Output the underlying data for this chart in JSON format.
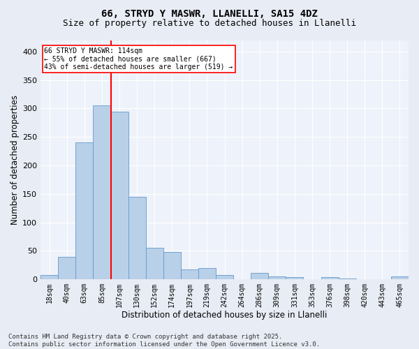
{
  "title_line1": "66, STRYD Y MASWR, LLANELLI, SA15 4DZ",
  "title_line2": "Size of property relative to detached houses in Llanelli",
  "xlabel": "Distribution of detached houses by size in Llanelli",
  "ylabel": "Number of detached properties",
  "bar_labels": [
    "18sqm",
    "40sqm",
    "63sqm",
    "85sqm",
    "107sqm",
    "130sqm",
    "152sqm",
    "174sqm",
    "197sqm",
    "219sqm",
    "242sqm",
    "264sqm",
    "286sqm",
    "309sqm",
    "331sqm",
    "353sqm",
    "376sqm",
    "398sqm",
    "420sqm",
    "443sqm",
    "465sqm"
  ],
  "bar_values": [
    8,
    40,
    240,
    305,
    295,
    145,
    55,
    48,
    17,
    20,
    8,
    0,
    11,
    5,
    4,
    0,
    4,
    1,
    0,
    0,
    5
  ],
  "bar_color": "#b8d0e8",
  "bar_edge_color": "#6699cc",
  "red_line_index": 4,
  "annotation_line1": "66 STRYD Y MASWR: 114sqm",
  "annotation_line2": "← 55% of detached houses are smaller (667)",
  "annotation_line3": "43% of semi-detached houses are larger (519) →",
  "ylim": [
    0,
    420
  ],
  "yticks": [
    0,
    50,
    100,
    150,
    200,
    250,
    300,
    350,
    400
  ],
  "footer_text": "Contains HM Land Registry data © Crown copyright and database right 2025.\nContains public sector information licensed under the Open Government Licence v3.0.",
  "bg_color": "#e8ecf4",
  "plot_bg_color": "#eef2fa",
  "grid_color": "#ffffff",
  "title_fontsize": 10,
  "subtitle_fontsize": 9,
  "axis_label_fontsize": 8.5,
  "tick_fontsize": 7,
  "footer_fontsize": 6.5
}
